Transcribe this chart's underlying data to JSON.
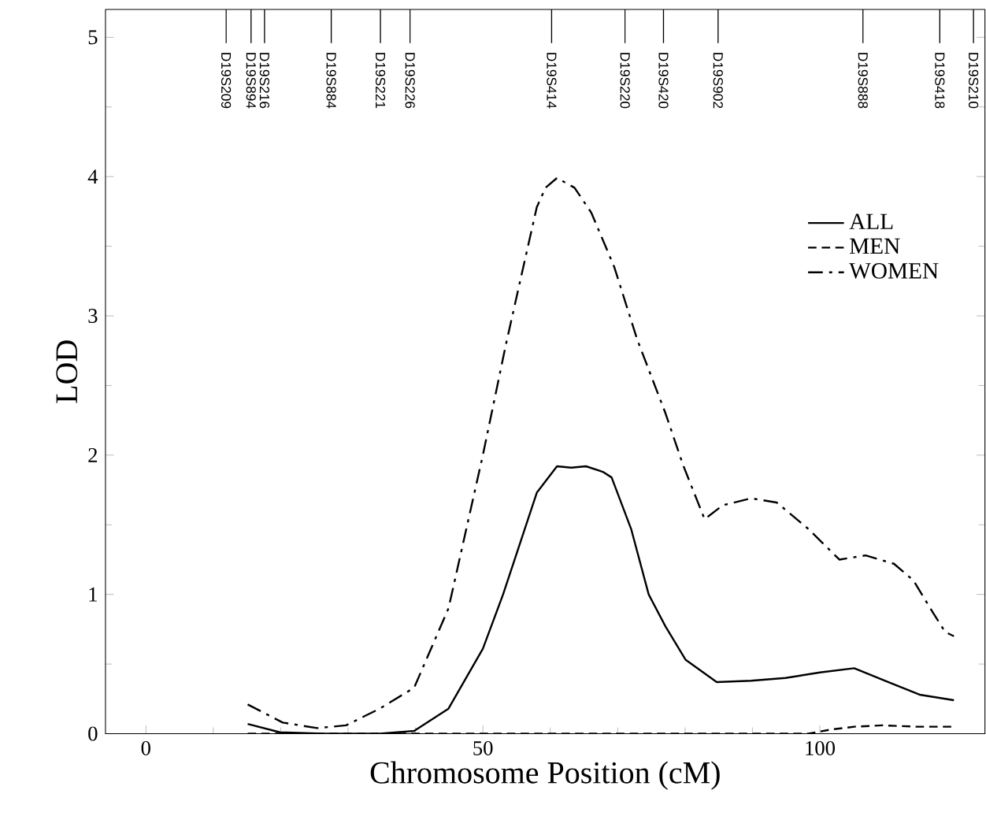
{
  "chart_data": {
    "type": "line",
    "xlabel": "Chromosome Position (cM)",
    "ylabel": "LOD",
    "xlim": [
      -6,
      124.5
    ],
    "xticks": [
      0,
      50,
      100
    ],
    "ylim": [
      0,
      5.2
    ],
    "yticks": [
      0,
      1,
      2,
      3,
      4,
      5
    ],
    "ref_lines": [
      {
        "axis": "x",
        "value": 11.9,
        "label": "D19S209"
      },
      {
        "axis": "x",
        "value": 15.6,
        "label": "D19S894"
      },
      {
        "axis": "x",
        "value": 17.6,
        "label": "D19S216"
      },
      {
        "axis": "x",
        "value": 27.5,
        "label": "D19S884"
      },
      {
        "axis": "x",
        "value": 34.8,
        "label": "D19S221"
      },
      {
        "axis": "x",
        "value": 39.2,
        "label": "D19S226"
      },
      {
        "axis": "x",
        "value": 60.2,
        "label": "D19S414"
      },
      {
        "axis": "x",
        "value": 71.1,
        "label": "D19S220"
      },
      {
        "axis": "x",
        "value": 76.8,
        "label": "D19S420"
      },
      {
        "axis": "x",
        "value": 84.9,
        "label": "D19S902"
      },
      {
        "axis": "x",
        "value": 106.4,
        "label": "D19S888"
      },
      {
        "axis": "x",
        "value": 117.8,
        "label": "D19S418"
      },
      {
        "axis": "x",
        "value": 122.8,
        "label": "D19S210"
      }
    ],
    "legend": "top right",
    "grid": false,
    "marker": "none",
    "series": [
      {
        "name": "ALL",
        "color": "#000000",
        "line_style": "solid",
        "x": [
          15.1,
          19.9,
          26.3,
          34.7,
          39.8,
          44.9,
          50,
          53,
          58,
          61,
          63.1,
          65.3,
          67.8,
          69.1,
          72,
          74.6,
          77.1,
          80.1,
          84.7,
          89.8,
          94.9,
          100,
          105.1,
          110.2,
          114.8,
          119.9
        ],
        "values": [
          0.07,
          0.01,
          0,
          0,
          0.02,
          0.18,
          0.61,
          1.0,
          1.73,
          1.92,
          1.91,
          1.92,
          1.88,
          1.84,
          1.47,
          1.0,
          0.77,
          0.53,
          0.37,
          0.38,
          0.4,
          0.44,
          0.47,
          0.37,
          0.28,
          0.24
        ]
      },
      {
        "name": "MEN",
        "color": "#000000",
        "line_style": "dashed",
        "x": [
          15.1,
          50,
          75,
          98.3,
          101.7,
          105.1,
          109.3,
          114.4,
          119.5
        ],
        "values": [
          0,
          0,
          0,
          0,
          0.03,
          0.05,
          0.06,
          0.05,
          0.05
        ]
      },
      {
        "name": "WOMEN",
        "color": "#000000",
        "line_style": "dashdot",
        "x": [
          15.1,
          20.3,
          25.4,
          29.7,
          34.7,
          39.8,
          44.9,
          50,
          53.4,
          55.9,
          58,
          59.3,
          61,
          63.6,
          66.1,
          69.5,
          72.9,
          77.1,
          79.7,
          82.9,
          85.6,
          89.8,
          93.6,
          98.3,
          102.9,
          106.8,
          111,
          113.9,
          116.9,
          118.6,
          119.9
        ],
        "values": [
          0.21,
          0.08,
          0.04,
          0.06,
          0.18,
          0.33,
          0.9,
          2.0,
          2.79,
          3.33,
          3.78,
          3.92,
          3.99,
          3.92,
          3.74,
          3.35,
          2.83,
          2.3,
          1.93,
          1.54,
          1.64,
          1.69,
          1.66,
          1.47,
          1.25,
          1.28,
          1.22,
          1.1,
          0.86,
          0.73,
          0.7
        ]
      }
    ]
  }
}
